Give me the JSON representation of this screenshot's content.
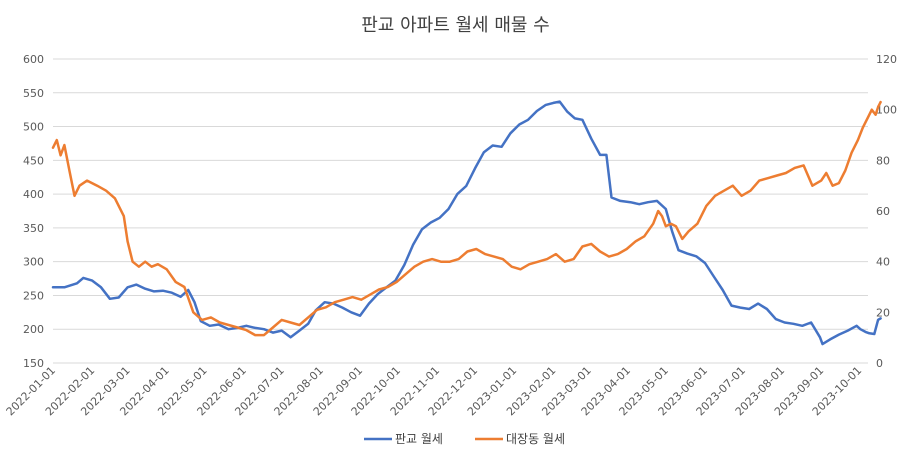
{
  "chart_data": {
    "type": "line",
    "title": "판교 아파트 월세 매물 수",
    "y_left": {
      "min": 150,
      "max": 600,
      "ticks": [
        150,
        200,
        250,
        300,
        350,
        400,
        450,
        500,
        550,
        600
      ]
    },
    "y_right": {
      "min": 0,
      "max": 120,
      "ticks": [
        0,
        20,
        40,
        60,
        80,
        100,
        120
      ]
    },
    "x_ticks": [
      "2022-01-01",
      "2022-02-01",
      "2022-03-01",
      "2022-04-01",
      "2022-05-01",
      "2022-06-01",
      "2022-07-01",
      "2022-08-01",
      "2022-09-01",
      "2022-10-01",
      "2022-11-01",
      "2022-12-01",
      "2023-01-01",
      "2023-02-01",
      "2023-03-01",
      "2023-04-01",
      "2023-05-01",
      "2023-06-01",
      "2023-07-01",
      "2023-08-01",
      "2023-09-01",
      "2023-10-01"
    ],
    "x_range": [
      "2022-01-01",
      "2023-10-08"
    ],
    "legend_position": "bottom",
    "grid": true,
    "series": [
      {
        "name": "판교 월세",
        "axis": "left",
        "color": "#4472C4",
        "points": [
          [
            "2022-01-01",
            262
          ],
          [
            "2022-01-10",
            262
          ],
          [
            "2022-01-20",
            268
          ],
          [
            "2022-01-25",
            276
          ],
          [
            "2022-02-01",
            272
          ],
          [
            "2022-02-08",
            262
          ],
          [
            "2022-02-15",
            245
          ],
          [
            "2022-02-22",
            247
          ],
          [
            "2022-03-01",
            262
          ],
          [
            "2022-03-08",
            266
          ],
          [
            "2022-03-15",
            260
          ],
          [
            "2022-03-22",
            256
          ],
          [
            "2022-03-29",
            257
          ],
          [
            "2022-04-05",
            254
          ],
          [
            "2022-04-12",
            248
          ],
          [
            "2022-04-18",
            258
          ],
          [
            "2022-04-23",
            240
          ],
          [
            "2022-04-28",
            212
          ],
          [
            "2022-05-05",
            205
          ],
          [
            "2022-05-12",
            207
          ],
          [
            "2022-05-20",
            200
          ],
          [
            "2022-05-27",
            202
          ],
          [
            "2022-06-03",
            205
          ],
          [
            "2022-06-10",
            202
          ],
          [
            "2022-06-17",
            200
          ],
          [
            "2022-06-24",
            195
          ],
          [
            "2022-07-01",
            198
          ],
          [
            "2022-07-08",
            188
          ],
          [
            "2022-07-15",
            198
          ],
          [
            "2022-07-22",
            208
          ],
          [
            "2022-07-28",
            228
          ],
          [
            "2022-08-04",
            240
          ],
          [
            "2022-08-11",
            238
          ],
          [
            "2022-08-18",
            232
          ],
          [
            "2022-08-25",
            225
          ],
          [
            "2022-09-01",
            220
          ],
          [
            "2022-09-08",
            238
          ],
          [
            "2022-09-15",
            252
          ],
          [
            "2022-09-22",
            262
          ],
          [
            "2022-09-29",
            272
          ],
          [
            "2022-10-06",
            295
          ],
          [
            "2022-10-13",
            325
          ],
          [
            "2022-10-20",
            348
          ],
          [
            "2022-10-27",
            358
          ],
          [
            "2022-11-03",
            365
          ],
          [
            "2022-11-10",
            378
          ],
          [
            "2022-11-17",
            400
          ],
          [
            "2022-11-24",
            412
          ],
          [
            "2022-12-01",
            438
          ],
          [
            "2022-12-08",
            462
          ],
          [
            "2022-12-15",
            472
          ],
          [
            "2022-12-22",
            470
          ],
          [
            "2022-12-29",
            490
          ],
          [
            "2023-01-05",
            503
          ],
          [
            "2023-01-12",
            510
          ],
          [
            "2023-01-19",
            523
          ],
          [
            "2023-01-26",
            532
          ],
          [
            "2023-02-01",
            535
          ],
          [
            "2023-02-06",
            537
          ],
          [
            "2023-02-12",
            522
          ],
          [
            "2023-02-18",
            512
          ],
          [
            "2023-02-24",
            510
          ],
          [
            "2023-03-03",
            482
          ],
          [
            "2023-03-10",
            458
          ],
          [
            "2023-03-15",
            458
          ],
          [
            "2023-03-19",
            395
          ],
          [
            "2023-03-26",
            390
          ],
          [
            "2023-04-03",
            388
          ],
          [
            "2023-04-10",
            385
          ],
          [
            "2023-04-17",
            388
          ],
          [
            "2023-04-24",
            390
          ],
          [
            "2023-05-01",
            378
          ],
          [
            "2023-05-06",
            345
          ],
          [
            "2023-05-11",
            317
          ],
          [
            "2023-05-18",
            312
          ],
          [
            "2023-05-25",
            308
          ],
          [
            "2023-06-01",
            298
          ],
          [
            "2023-06-08",
            278
          ],
          [
            "2023-06-15",
            258
          ],
          [
            "2023-06-22",
            235
          ],
          [
            "2023-06-29",
            232
          ],
          [
            "2023-07-06",
            230
          ],
          [
            "2023-07-13",
            238
          ],
          [
            "2023-07-20",
            230
          ],
          [
            "2023-07-27",
            215
          ],
          [
            "2023-08-03",
            210
          ],
          [
            "2023-08-10",
            208
          ],
          [
            "2023-08-17",
            205
          ],
          [
            "2023-08-24",
            210
          ],
          [
            "2023-08-31",
            188
          ],
          [
            "2023-09-02",
            178
          ],
          [
            "2023-09-08",
            185
          ],
          [
            "2023-09-15",
            192
          ],
          [
            "2023-09-22",
            198
          ],
          [
            "2023-09-29",
            205
          ],
          [
            "2023-10-02",
            200
          ],
          [
            "2023-10-06",
            196
          ],
          [
            "2023-10-09",
            194
          ],
          [
            "2023-10-13",
            193
          ],
          [
            "2023-10-16",
            214
          ],
          [
            "2023-10-18",
            216
          ]
        ]
      },
      {
        "name": "대장동 월세",
        "axis": "right",
        "color": "#ED7D31",
        "points": [
          [
            "2022-01-01",
            85
          ],
          [
            "2022-01-04",
            88
          ],
          [
            "2022-01-07",
            82
          ],
          [
            "2022-01-10",
            86
          ],
          [
            "2022-01-14",
            76
          ],
          [
            "2022-01-18",
            66
          ],
          [
            "2022-01-22",
            70
          ],
          [
            "2022-01-28",
            72
          ],
          [
            "2022-02-05",
            70
          ],
          [
            "2022-02-12",
            68
          ],
          [
            "2022-02-19",
            65
          ],
          [
            "2022-02-26",
            58
          ],
          [
            "2022-03-01",
            48
          ],
          [
            "2022-03-05",
            40
          ],
          [
            "2022-03-10",
            38
          ],
          [
            "2022-03-15",
            40
          ],
          [
            "2022-03-20",
            38
          ],
          [
            "2022-03-25",
            39
          ],
          [
            "2022-04-01",
            37
          ],
          [
            "2022-04-08",
            32
          ],
          [
            "2022-04-15",
            30
          ],
          [
            "2022-04-22",
            20
          ],
          [
            "2022-04-29",
            17
          ],
          [
            "2022-05-06",
            18
          ],
          [
            "2022-05-13",
            16
          ],
          [
            "2022-05-20",
            15
          ],
          [
            "2022-05-27",
            14
          ],
          [
            "2022-06-03",
            13
          ],
          [
            "2022-06-10",
            11
          ],
          [
            "2022-06-17",
            11
          ],
          [
            "2022-06-24",
            14
          ],
          [
            "2022-07-01",
            17
          ],
          [
            "2022-07-08",
            16
          ],
          [
            "2022-07-15",
            15
          ],
          [
            "2022-07-22",
            18
          ],
          [
            "2022-07-29",
            21
          ],
          [
            "2022-08-05",
            22
          ],
          [
            "2022-08-12",
            24
          ],
          [
            "2022-08-19",
            25
          ],
          [
            "2022-08-26",
            26
          ],
          [
            "2022-09-02",
            25
          ],
          [
            "2022-09-09",
            27
          ],
          [
            "2022-09-16",
            29
          ],
          [
            "2022-09-23",
            30
          ],
          [
            "2022-09-30",
            32
          ],
          [
            "2022-10-07",
            35
          ],
          [
            "2022-10-14",
            38
          ],
          [
            "2022-10-21",
            40
          ],
          [
            "2022-10-28",
            41
          ],
          [
            "2022-11-04",
            40
          ],
          [
            "2022-11-11",
            40
          ],
          [
            "2022-11-18",
            41
          ],
          [
            "2022-11-25",
            44
          ],
          [
            "2022-12-02",
            45
          ],
          [
            "2022-12-09",
            43
          ],
          [
            "2022-12-16",
            42
          ],
          [
            "2022-12-23",
            41
          ],
          [
            "2022-12-30",
            38
          ],
          [
            "2023-01-06",
            37
          ],
          [
            "2023-01-13",
            39
          ],
          [
            "2023-01-20",
            40
          ],
          [
            "2023-01-27",
            41
          ],
          [
            "2023-02-03",
            43
          ],
          [
            "2023-02-10",
            40
          ],
          [
            "2023-02-17",
            41
          ],
          [
            "2023-02-24",
            46
          ],
          [
            "2023-03-03",
            47
          ],
          [
            "2023-03-10",
            44
          ],
          [
            "2023-03-17",
            42
          ],
          [
            "2023-03-24",
            43
          ],
          [
            "2023-03-31",
            45
          ],
          [
            "2023-04-07",
            48
          ],
          [
            "2023-04-14",
            50
          ],
          [
            "2023-04-21",
            55
          ],
          [
            "2023-04-25",
            60
          ],
          [
            "2023-04-28",
            58
          ],
          [
            "2023-05-01",
            54
          ],
          [
            "2023-05-05",
            55
          ],
          [
            "2023-05-09",
            54
          ],
          [
            "2023-05-14",
            49
          ],
          [
            "2023-05-19",
            52
          ],
          [
            "2023-05-26",
            55
          ],
          [
            "2023-06-02",
            62
          ],
          [
            "2023-06-09",
            66
          ],
          [
            "2023-06-16",
            68
          ],
          [
            "2023-06-23",
            70
          ],
          [
            "2023-06-30",
            66
          ],
          [
            "2023-07-07",
            68
          ],
          [
            "2023-07-14",
            72
          ],
          [
            "2023-07-21",
            73
          ],
          [
            "2023-07-28",
            74
          ],
          [
            "2023-08-04",
            75
          ],
          [
            "2023-08-11",
            77
          ],
          [
            "2023-08-18",
            78
          ],
          [
            "2023-08-25",
            70
          ],
          [
            "2023-09-01",
            72
          ],
          [
            "2023-09-05",
            75
          ],
          [
            "2023-09-10",
            70
          ],
          [
            "2023-09-15",
            71
          ],
          [
            "2023-09-20",
            76
          ],
          [
            "2023-09-25",
            83
          ],
          [
            "2023-09-30",
            88
          ],
          [
            "2023-10-04",
            93
          ],
          [
            "2023-10-08",
            97
          ],
          [
            "2023-10-11",
            100
          ],
          [
            "2023-10-14",
            98
          ],
          [
            "2023-10-16",
            101
          ],
          [
            "2023-10-18",
            103
          ]
        ]
      }
    ]
  }
}
